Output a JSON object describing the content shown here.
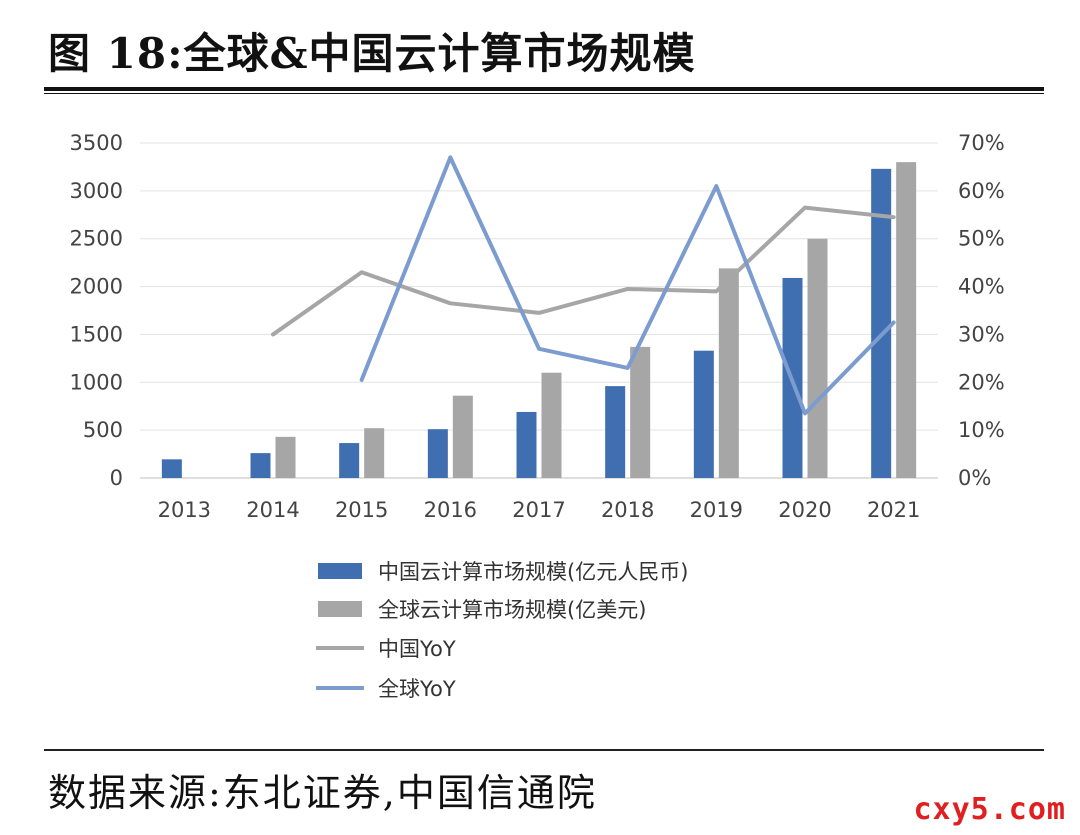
{
  "figure": {
    "title": "图 18:全球&中国云计算市场规模",
    "source": "数据来源:东北证券,中国信通院",
    "watermark": "cxy5.com"
  },
  "chart_data": {
    "type": "bar",
    "title": "全球&中国云计算市场规模",
    "categories": [
      "2013",
      "2014",
      "2015",
      "2016",
      "2017",
      "2018",
      "2019",
      "2020",
      "2021"
    ],
    "series": [
      {
        "name": "中国云计算市场规模(亿元人民币)",
        "kind": "bar",
        "axis": "left",
        "color": "#3f6fb0",
        "values": [
          195,
          260,
          365,
          510,
          690,
          960,
          1330,
          2090,
          3230
        ]
      },
      {
        "name": "全球云计算市场规模(亿美元)",
        "kind": "bar",
        "axis": "left",
        "color": "#a6a6a6",
        "values": [
          null,
          430,
          520,
          860,
          1100,
          1370,
          2190,
          2500,
          3300
        ]
      },
      {
        "name": "中国YoY",
        "kind": "line",
        "axis": "right",
        "color": "#a6a6a6",
        "values": [
          null,
          30,
          43,
          36.5,
          34.5,
          39.5,
          39,
          56.5,
          54.5
        ]
      },
      {
        "name": "全球YoY",
        "kind": "line",
        "axis": "right",
        "color": "#7c9cd0",
        "values": [
          null,
          null,
          20.5,
          67,
          27,
          23,
          61,
          13.5,
          32.5
        ]
      }
    ],
    "ylim_left": [
      0,
      3500
    ],
    "yticks_left": [
      "3500",
      "3000",
      "2500",
      "2000",
      "1500",
      "1000",
      "500",
      "0"
    ],
    "ylim_right": [
      0,
      70
    ],
    "yticks_right": [
      "70%",
      "60%",
      "50%",
      "40%",
      "30%",
      "20%",
      "10%",
      "0%"
    ],
    "grid": true,
    "legend_position": "bottom"
  }
}
